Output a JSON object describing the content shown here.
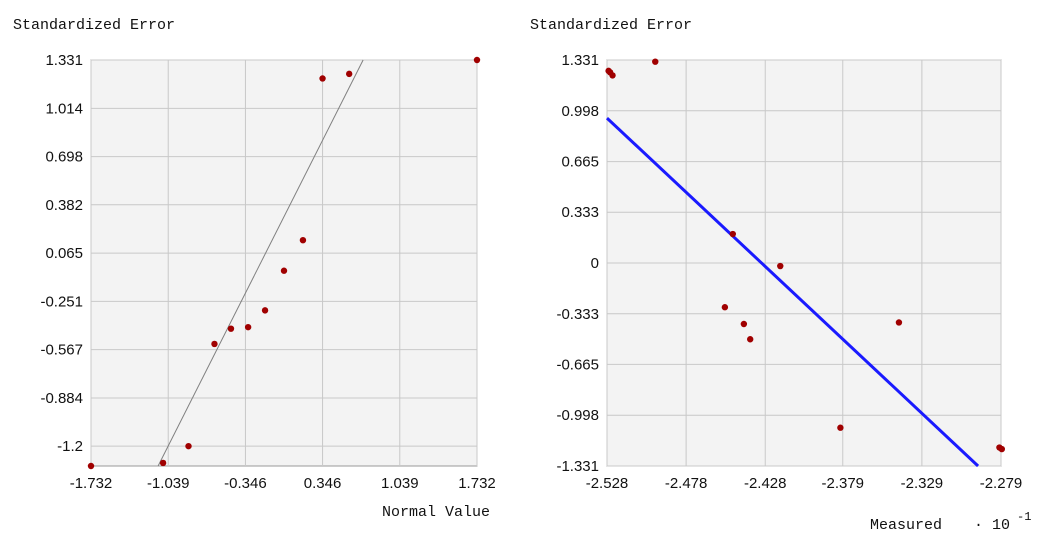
{
  "chart_data": [
    {
      "type": "scatter",
      "ylabel": "Standardized Error",
      "xlabel": "Normal Value",
      "xlim": [
        -1.732,
        1.732
      ],
      "ylim": [
        -1.33,
        1.331
      ],
      "xticks": [
        "-1.732",
        "-1.039",
        "-0.346",
        "0.346",
        "1.039",
        "1.732"
      ],
      "xtick_values": [
        -1.732,
        -1.039,
        -0.346,
        0.346,
        1.039,
        1.732
      ],
      "yticks": [
        "1.331",
        "1.014",
        "0.698",
        "0.382",
        "0.065",
        "-0.251",
        "-0.567",
        "-0.884",
        "-1.2"
      ],
      "ytick_values": [
        1.331,
        1.014,
        0.698,
        0.382,
        0.065,
        -0.251,
        -0.567,
        -0.884,
        -1.2
      ],
      "grid": true,
      "points": [
        {
          "x": -1.732,
          "y": -1.33
        },
        {
          "x": -1.085,
          "y": -1.31
        },
        {
          "x": -0.857,
          "y": -1.2
        },
        {
          "x": -0.624,
          "y": -0.53
        },
        {
          "x": -0.476,
          "y": -0.43
        },
        {
          "x": -0.322,
          "y": -0.42
        },
        {
          "x": -0.17,
          "y": -0.31
        },
        {
          "x": 0.0,
          "y": -0.05
        },
        {
          "x": 0.17,
          "y": 0.15
        },
        {
          "x": 0.346,
          "y": 1.21
        },
        {
          "x": 0.585,
          "y": 1.24
        },
        {
          "x": 1.732,
          "y": 1.331
        }
      ],
      "line": {
        "x1": -1.13,
        "y1": -1.33,
        "x2": 0.71,
        "y2": 1.331,
        "color": "#808080"
      },
      "point_color": "#a00000"
    },
    {
      "type": "scatter",
      "ylabel": "Standardized Error",
      "xlabel": "Measured",
      "xlabel_multiplier": "· 10",
      "xlabel_exponent": "-1",
      "xlim": [
        -2.528,
        -2.279
      ],
      "ylim": [
        -1.331,
        1.331
      ],
      "xticks": [
        "-2.528",
        "-2.478",
        "-2.428",
        "-2.379",
        "-2.329",
        "-2.279"
      ],
      "xtick_values": [
        -2.528,
        -2.478,
        -2.428,
        -2.379,
        -2.329,
        -2.279
      ],
      "yticks": [
        "1.331",
        "0.998",
        "0.665",
        "0.333",
        "0",
        "-0.333",
        "-0.665",
        "-0.998",
        "-1.331"
      ],
      "ytick_values": [
        1.331,
        0.998,
        0.665,
        0.333,
        0,
        -0.333,
        -0.665,
        -0.998,
        -1.331
      ],
      "grid": true,
      "points": [
        {
          "x": -2.527,
          "y": 1.26
        },
        {
          "x": -2.526,
          "y": 1.25
        },
        {
          "x": -2.5245,
          "y": 1.23
        },
        {
          "x": -2.4975,
          "y": 1.32
        },
        {
          "x": -2.4535,
          "y": -0.29
        },
        {
          "x": -2.4485,
          "y": 0.19
        },
        {
          "x": -2.4415,
          "y": -0.4
        },
        {
          "x": -2.4375,
          "y": -0.5
        },
        {
          "x": -2.4185,
          "y": -0.02
        },
        {
          "x": -2.3805,
          "y": -1.08
        },
        {
          "x": -2.3435,
          "y": -0.39
        },
        {
          "x": -2.28,
          "y": -1.21
        },
        {
          "x": -2.2785,
          "y": -1.22
        }
      ],
      "line": {
        "x1": -2.528,
        "y1": 0.95,
        "x2": -2.2935,
        "y2": -1.331,
        "color": "#1a1aff"
      },
      "point_color": "#a00000"
    }
  ]
}
